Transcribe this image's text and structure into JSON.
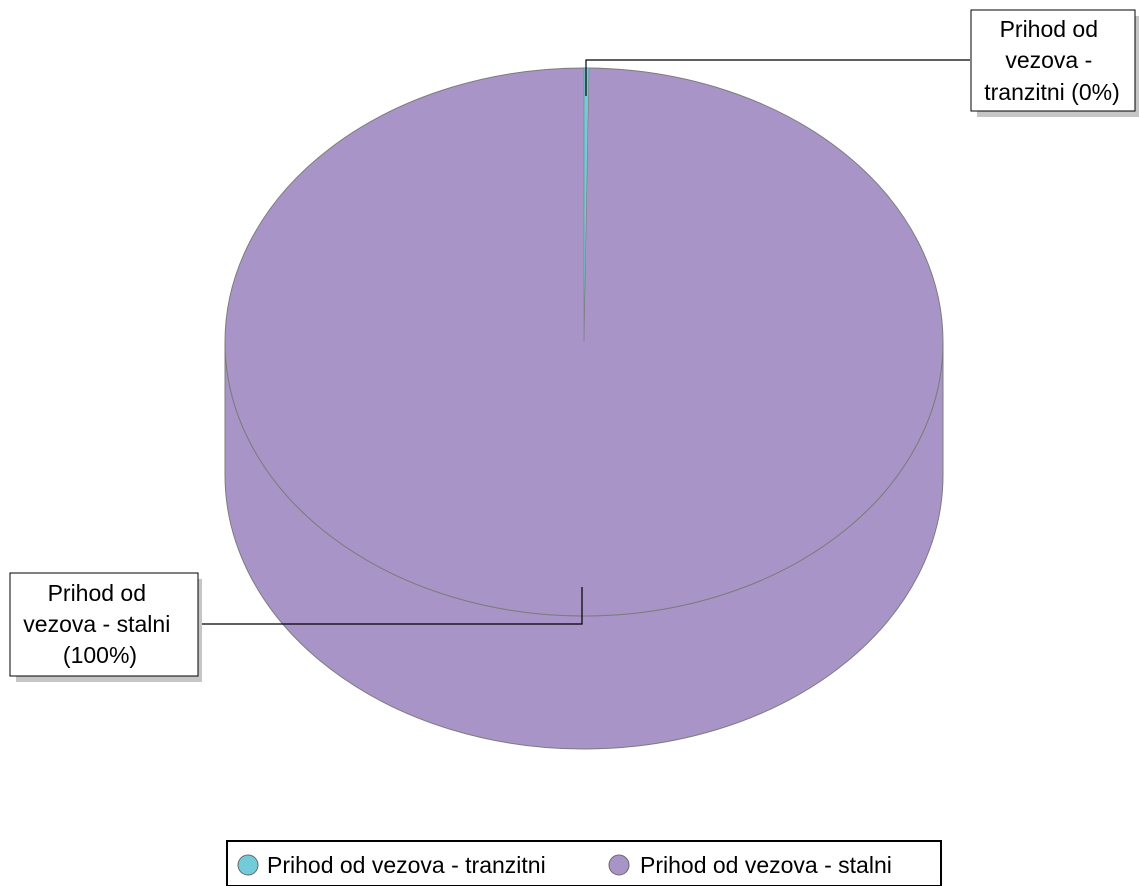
{
  "chart_data": {
    "type": "pie",
    "title": "",
    "style": "3d",
    "legend_position": "bottom",
    "slices": [
      {
        "label": "Prihod od vezova - tranzitni",
        "value": 0,
        "percent_label": "(0%)",
        "callout_lines": [
          "Prihod od",
          "vezova -",
          "tranzitni (0%)"
        ],
        "color": "#72CBD8"
      },
      {
        "label": "Prihod od vezova - stalni",
        "value": 100,
        "percent_label": "(100%)",
        "callout_lines": [
          "Prihod od",
          "vezova - stalni",
          "(100%)"
        ],
        "color": "#A994C8"
      }
    ]
  }
}
